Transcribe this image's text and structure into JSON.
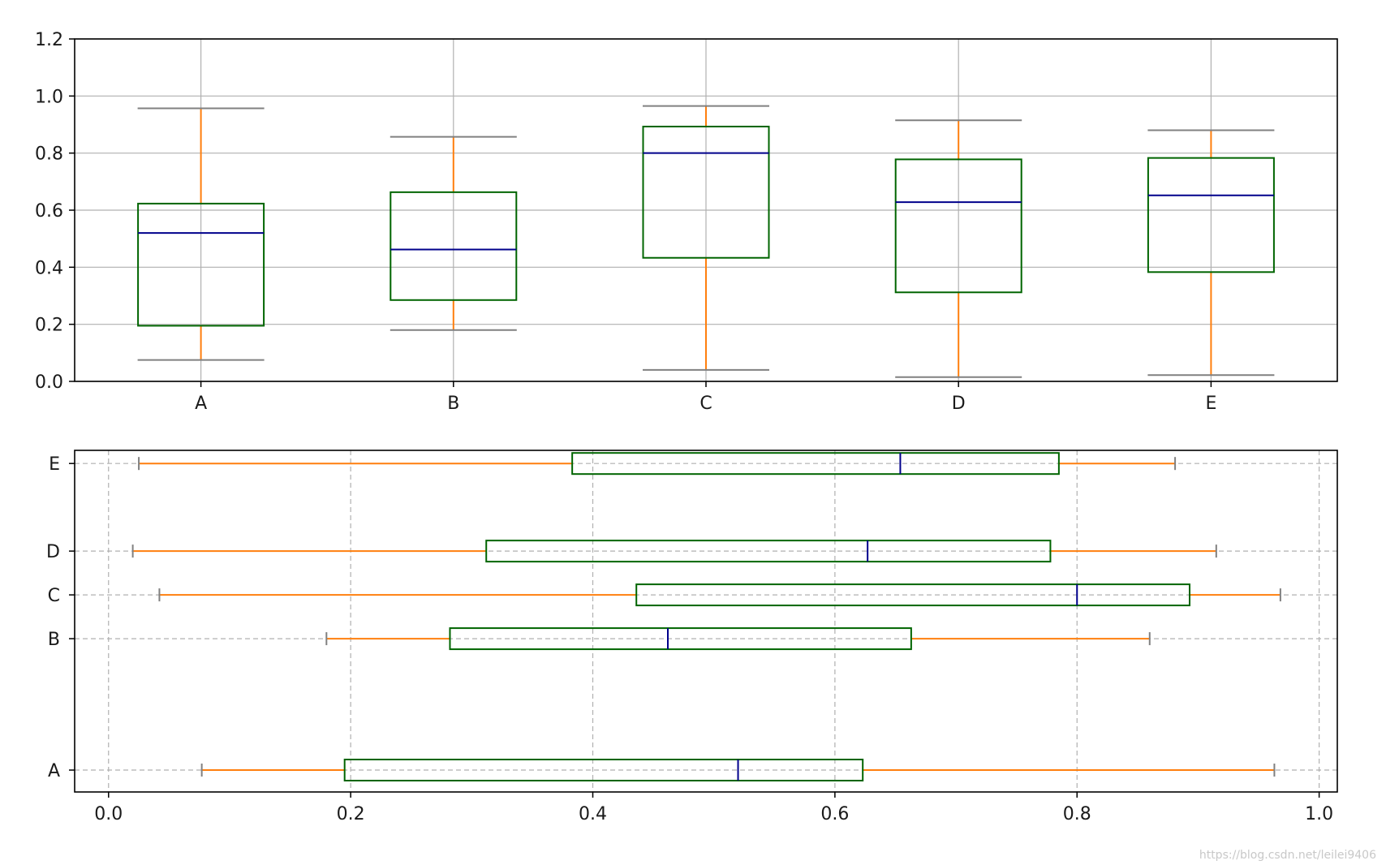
{
  "chart_data": [
    {
      "type": "box",
      "orientation": "vertical",
      "grid": "solid",
      "ylim": [
        0.0,
        1.2
      ],
      "yticks": [
        "0.0",
        "0.2",
        "0.4",
        "0.6",
        "0.8",
        "1.0",
        "1.2"
      ],
      "categories": [
        "A",
        "B",
        "C",
        "D",
        "E"
      ],
      "boxes": [
        {
          "label": "A",
          "whislo": 0.075,
          "q1": 0.195,
          "med": 0.52,
          "q3": 0.623,
          "whishi": 0.957
        },
        {
          "label": "B",
          "whislo": 0.18,
          "q1": 0.285,
          "med": 0.462,
          "q3": 0.663,
          "whishi": 0.857
        },
        {
          "label": "C",
          "whislo": 0.04,
          "q1": 0.433,
          "med": 0.8,
          "q3": 0.893,
          "whishi": 0.965
        },
        {
          "label": "D",
          "whislo": 0.015,
          "q1": 0.312,
          "med": 0.628,
          "q3": 0.778,
          "whishi": 0.915
        },
        {
          "label": "E",
          "whislo": 0.022,
          "q1": 0.383,
          "med": 0.652,
          "q3": 0.783,
          "whishi": 0.88
        }
      ],
      "colors": {
        "box": "#006400",
        "median": "#00008b",
        "whisker": "#ff7f0e",
        "cap": "#808080",
        "grid": "#b0b0b0"
      }
    },
    {
      "type": "box",
      "orientation": "horizontal",
      "grid": "dashed",
      "xlim": [
        -0.028,
        1.015
      ],
      "xticks": [
        "0.0",
        "0.2",
        "0.4",
        "0.6",
        "0.8",
        "1.0"
      ],
      "categories": [
        "A",
        "B",
        "C",
        "D",
        "E"
      ],
      "positions": [
        1,
        4,
        5,
        6,
        8
      ],
      "ylim": [
        0.5,
        8.3
      ],
      "boxes": [
        {
          "label": "A",
          "whislo": 0.077,
          "q1": 0.195,
          "med": 0.52,
          "q3": 0.623,
          "whishi": 0.963
        },
        {
          "label": "B",
          "whislo": 0.18,
          "q1": 0.282,
          "med": 0.462,
          "q3": 0.663,
          "whishi": 0.86
        },
        {
          "label": "C",
          "whislo": 0.042,
          "q1": 0.436,
          "med": 0.8,
          "q3": 0.893,
          "whishi": 0.968
        },
        {
          "label": "D",
          "whislo": 0.02,
          "q1": 0.312,
          "med": 0.627,
          "q3": 0.778,
          "whishi": 0.915
        },
        {
          "label": "E",
          "whislo": 0.025,
          "q1": 0.383,
          "med": 0.654,
          "q3": 0.785,
          "whishi": 0.881
        }
      ],
      "colors": {
        "box": "#006400",
        "median": "#00008b",
        "whisker": "#ff7f0e",
        "cap": "#808080",
        "grid": "#b0b0b0"
      }
    }
  ],
  "watermark": "https://blog.csdn.net/leilei9406"
}
